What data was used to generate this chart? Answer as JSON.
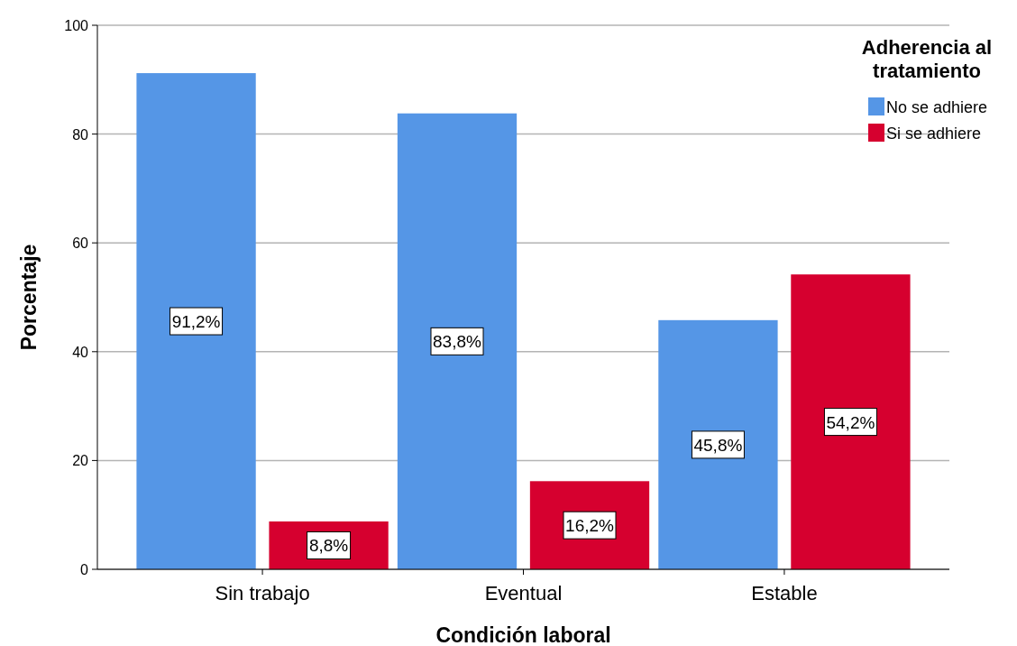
{
  "chart_data": {
    "type": "bar",
    "xlabel": "Condición laboral",
    "ylabel": "Porcentaje",
    "legend_title": "Adherencia al tratamiento",
    "categories": [
      "Sin trabajo",
      "Eventual",
      "Estable"
    ],
    "series": [
      {
        "name": "No se adhiere",
        "color": "#5596e6",
        "values": [
          91.2,
          83.8,
          45.8
        ],
        "value_labels": [
          "91,2%",
          "83,8%",
          "45,8%"
        ]
      },
      {
        "name": "Si se adhiere",
        "color": "#d6002f",
        "values": [
          8.8,
          16.2,
          54.2
        ],
        "value_labels": [
          "8,8%",
          "16,2%",
          "54,2%"
        ]
      }
    ],
    "ylim": [
      0,
      100
    ],
    "yticks": [
      0,
      20,
      40,
      60,
      80,
      100
    ],
    "grid": "y",
    "legend": "top right"
  }
}
